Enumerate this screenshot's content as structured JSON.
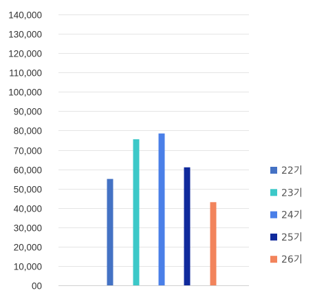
{
  "chart_data": {
    "type": "bar",
    "categories": [
      "22기",
      "23기",
      "24기",
      "25기",
      "26기"
    ],
    "series": [
      {
        "name": "22기",
        "value": 55000,
        "color": "#4472C4"
      },
      {
        "name": "23기",
        "value": 75500,
        "color": "#3CC8C8"
      },
      {
        "name": "24기",
        "value": 78500,
        "color": "#4A7FE8"
      },
      {
        "name": "25기",
        "value": 61000,
        "color": "#102A9C"
      },
      {
        "name": "26기",
        "value": 43000,
        "color": "#F2845C"
      }
    ],
    "yticks": [
      "00",
      "10,000",
      "20,000",
      "30,000",
      "40,000",
      "50,000",
      "60,000",
      "70,000",
      "80,000",
      "90,000",
      "100,000",
      "110,000",
      "120,000",
      "130,000",
      "140,000"
    ],
    "ylim": [
      0,
      140000
    ],
    "grid": true,
    "legend_position": "right"
  }
}
